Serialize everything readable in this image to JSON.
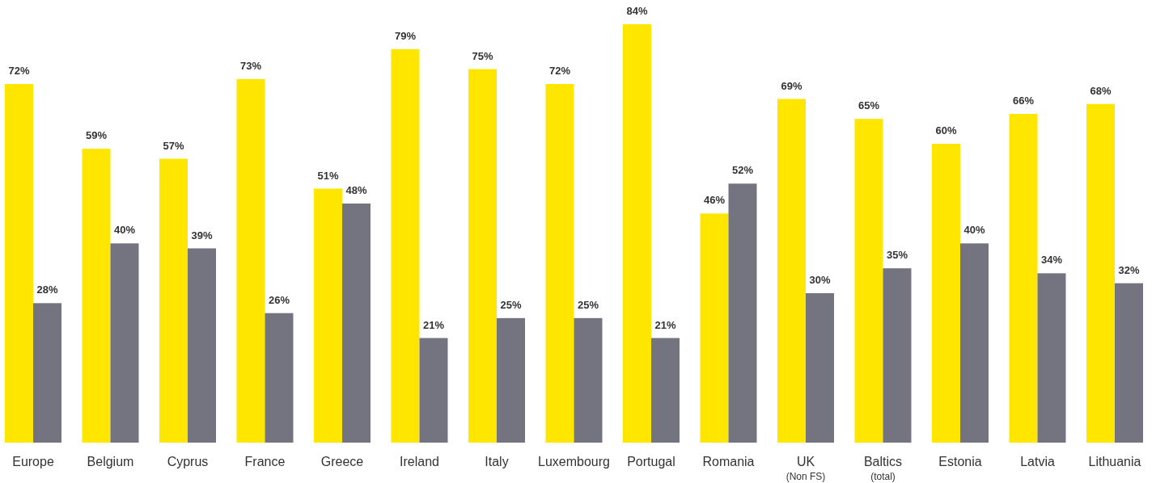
{
  "chart_data": {
    "type": "bar",
    "categories": [
      "Europe",
      "Belgium",
      "Cyprus",
      "France",
      "Greece",
      "Ireland",
      "Italy",
      "Luxembourg",
      "Portugal",
      "Romania",
      "UK$_{(Non FS)}$",
      "Baltics$_{(total)}$",
      "Estonia",
      "Latvia",
      "Lithuania"
    ],
    "series": [
      {
        "color": "#ffe600",
        "values": [
          72,
          59,
          57,
          73,
          51,
          79,
          75,
          72,
          84,
          46,
          69,
          65,
          60,
          66,
          68
        ],
        "value_labels": [
          "72%",
          "59%",
          "57%",
          "73%",
          "51%",
          "79%",
          "75%",
          "72%",
          "84%",
          "46%",
          "69%",
          "65%",
          "60%",
          "66%",
          "68%"
        ]
      },
      {
        "color": "#747480",
        "values": [
          28,
          40,
          39,
          26,
          48,
          21,
          25,
          25,
          21,
          52,
          30,
          35,
          40,
          34,
          32
        ],
        "value_labels": [
          "28%",
          "40%",
          "39%",
          "26%",
          "48%",
          "21%",
          "25%",
          "25%",
          "21%",
          "52%",
          "30%",
          "35%",
          "40%",
          "34%",
          "32%"
        ]
      }
    ]
  }
}
